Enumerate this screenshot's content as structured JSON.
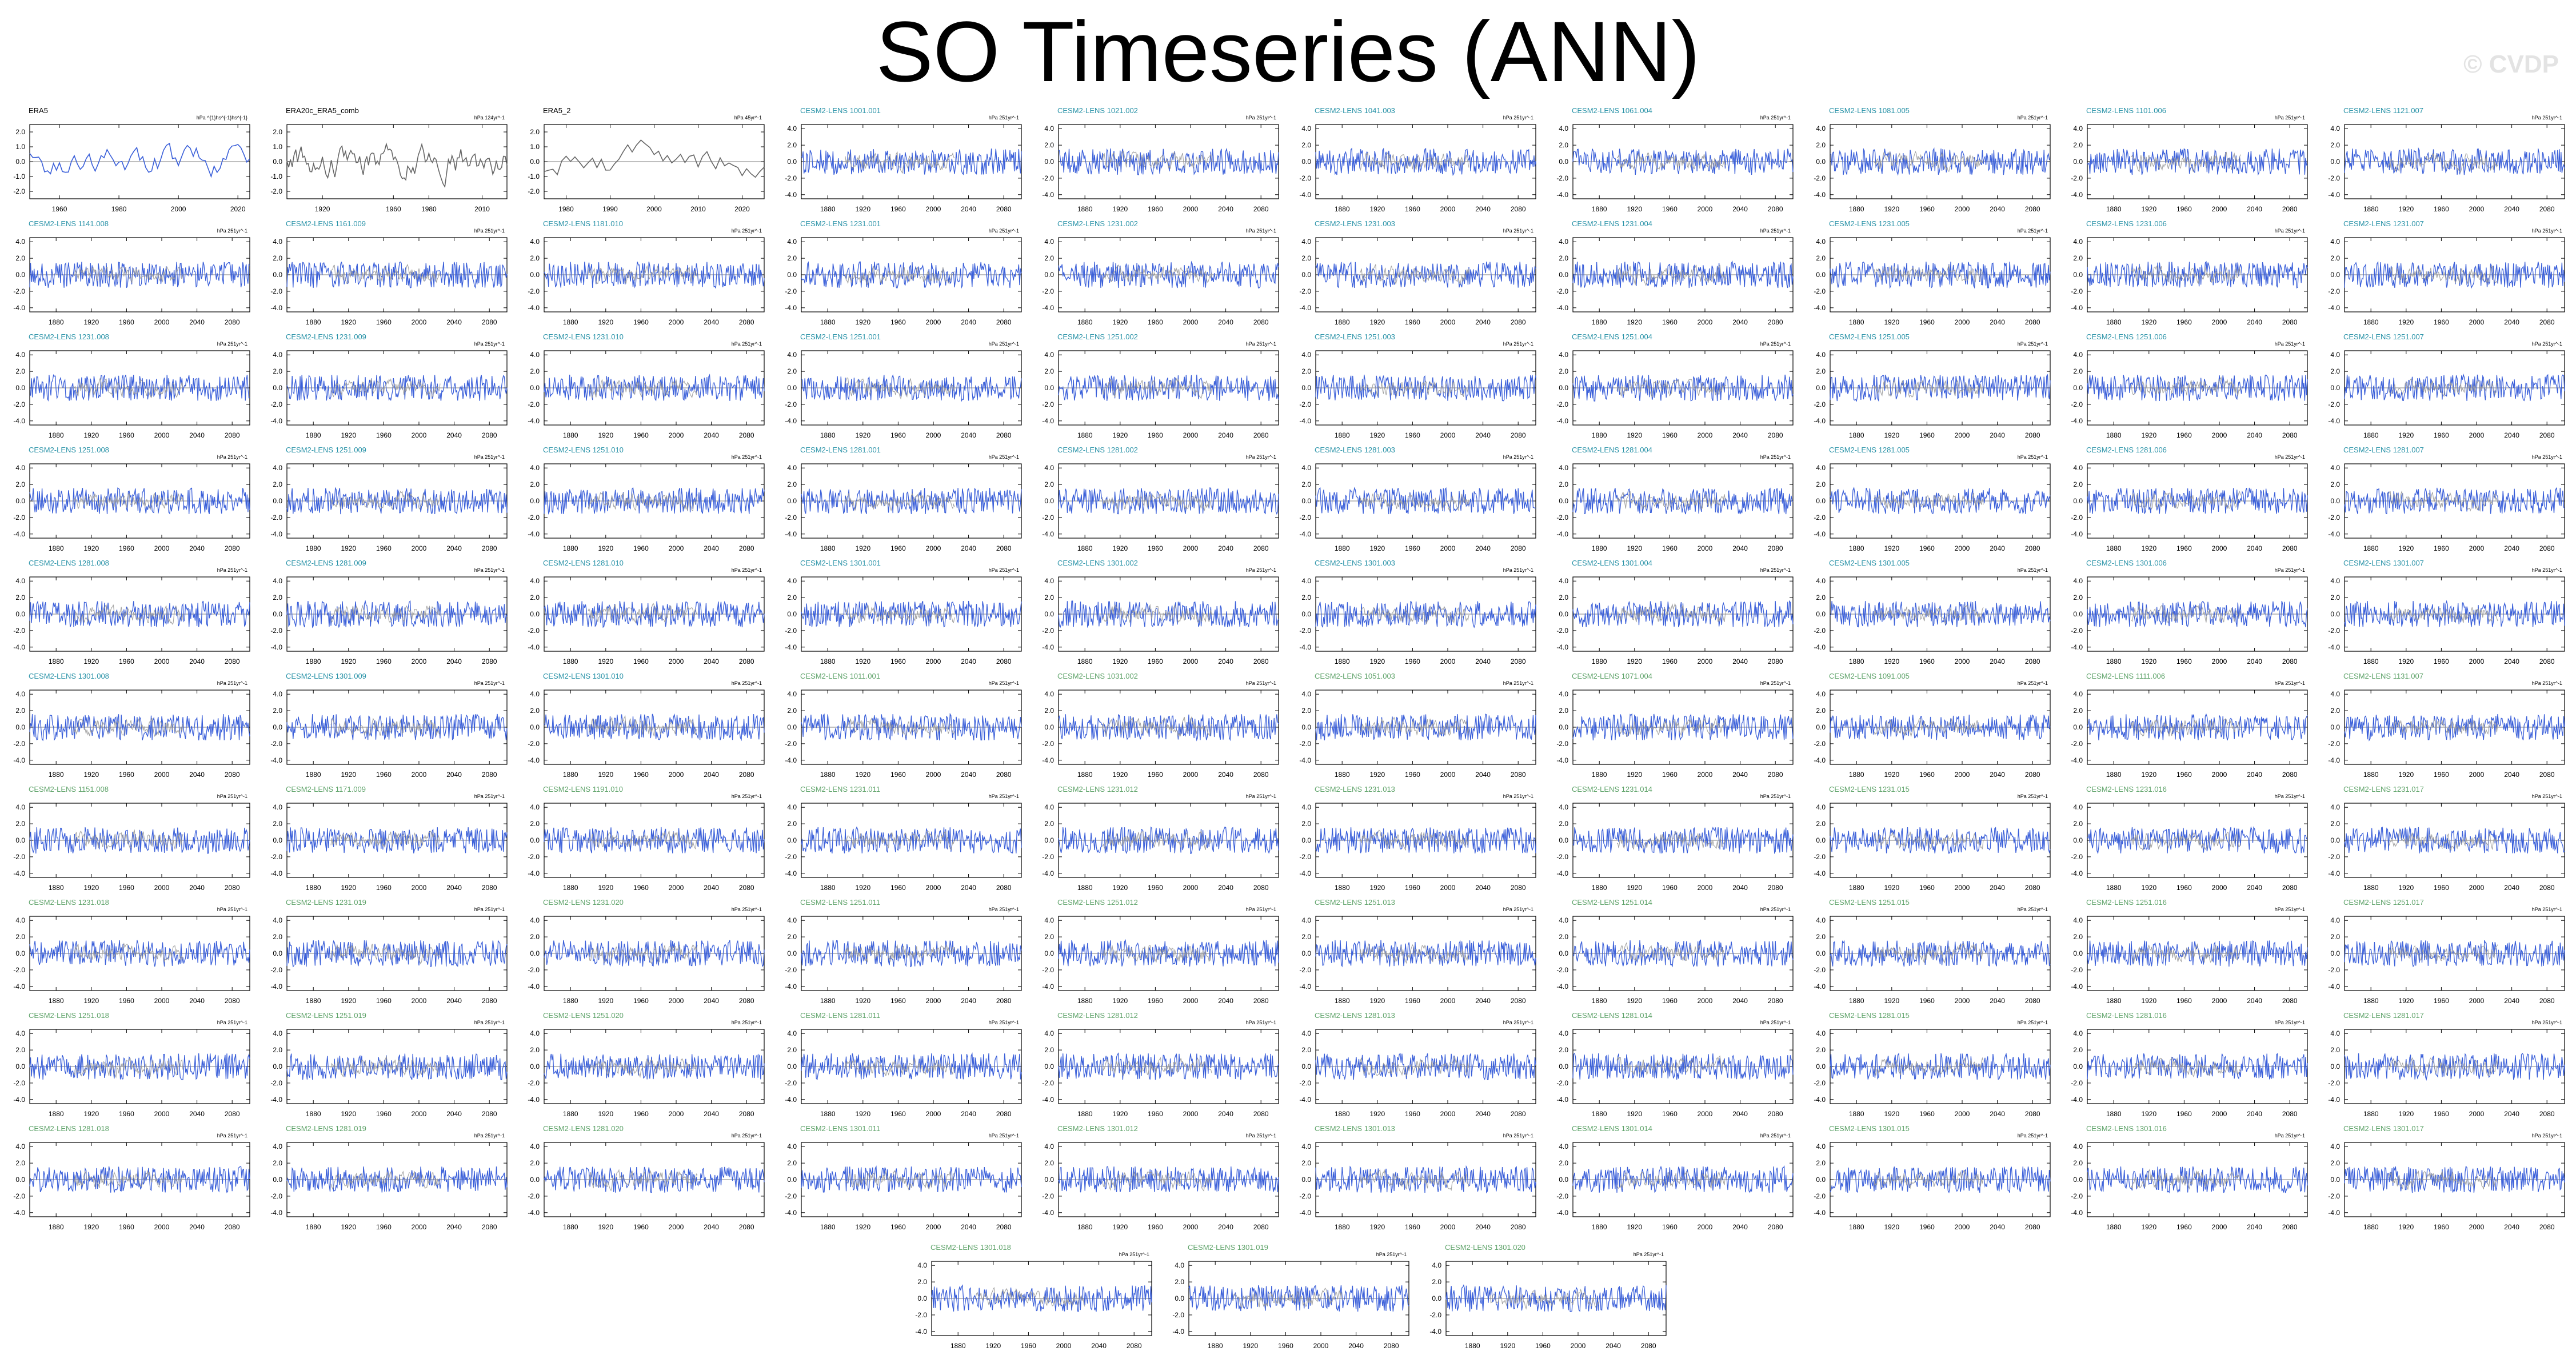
{
  "title": "SO Timeseries (ANN)",
  "watermark": "© CVDP",
  "colors": {
    "model_line": "#3a5fd9",
    "obs_line": "#666666",
    "ensemble_mean": "#9a9a9a",
    "obs_label": "#000000",
    "lens_label_a": "#2a93a8",
    "lens_label_b": "#5fa36a"
  },
  "chart_data": {
    "type": "line",
    "title": "SO Timeseries (ANN)",
    "panels": [
      {
        "name": "ERA5",
        "kind": "obs",
        "label_color": "obs_label",
        "units": "hPa ^{1}hs^{-1}hs^{-1}",
        "xlim": [
          1950,
          2024
        ],
        "xticks": [
          1960,
          1980,
          2000,
          2020
        ],
        "ylim": [
          -2.5,
          2.5
        ],
        "yticks": [
          2.0,
          1.0,
          0.0,
          -1.0,
          -2.0
        ]
      },
      {
        "name": "ERA20c_ERA5_comb",
        "kind": "obs",
        "label_color": "obs_label",
        "units": "hPa 124yr^-1",
        "xlim": [
          1900,
          2024
        ],
        "xticks": [
          1920,
          1960,
          1980,
          2010
        ],
        "ylim": [
          -2.5,
          2.5
        ],
        "yticks": [
          2.0,
          1.0,
          0.0,
          -1.0,
          -2.0
        ]
      },
      {
        "name": "ERA5_2",
        "kind": "obs",
        "label_color": "obs_label",
        "units": "hPa 45yr^-1",
        "xlim": [
          1975,
          2025
        ],
        "xticks": [
          1980,
          1990,
          2000,
          2010,
          2020
        ],
        "ylim": [
          -2.5,
          2.5
        ],
        "yticks": [
          2.0,
          1.0,
          0.0,
          -1.0,
          -2.0
        ]
      },
      {
        "name": "CESM2-LENS 1001.001",
        "label_color": "lens_label_a"
      },
      {
        "name": "CESM2-LENS 1021.002",
        "label_color": "lens_label_a"
      },
      {
        "name": "CESM2-LENS 1041.003",
        "label_color": "lens_label_a"
      },
      {
        "name": "CESM2-LENS 1061.004",
        "label_color": "lens_label_a"
      },
      {
        "name": "CESM2-LENS 1081.005",
        "label_color": "lens_label_a"
      },
      {
        "name": "CESM2-LENS 1101.006",
        "label_color": "lens_label_a"
      },
      {
        "name": "CESM2-LENS 1121.007",
        "label_color": "lens_label_a"
      },
      {
        "name": "CESM2-LENS 1141.008",
        "label_color": "lens_label_a"
      },
      {
        "name": "CESM2-LENS 1161.009",
        "label_color": "lens_label_a"
      },
      {
        "name": "CESM2-LENS 1181.010",
        "label_color": "lens_label_a"
      },
      {
        "name": "CESM2-LENS 1231.001",
        "label_color": "lens_label_a"
      },
      {
        "name": "CESM2-LENS 1231.002",
        "label_color": "lens_label_a"
      },
      {
        "name": "CESM2-LENS 1231.003",
        "label_color": "lens_label_a"
      },
      {
        "name": "CESM2-LENS 1231.004",
        "label_color": "lens_label_a"
      },
      {
        "name": "CESM2-LENS 1231.005",
        "label_color": "lens_label_a"
      },
      {
        "name": "CESM2-LENS 1231.006",
        "label_color": "lens_label_a"
      },
      {
        "name": "CESM2-LENS 1231.007",
        "label_color": "lens_label_a"
      },
      {
        "name": "CESM2-LENS 1231.008",
        "label_color": "lens_label_a"
      },
      {
        "name": "CESM2-LENS 1231.009",
        "label_color": "lens_label_a"
      },
      {
        "name": "CESM2-LENS 1231.010",
        "label_color": "lens_label_a"
      },
      {
        "name": "CESM2-LENS 1251.001",
        "label_color": "lens_label_a"
      },
      {
        "name": "CESM2-LENS 1251.002",
        "label_color": "lens_label_a"
      },
      {
        "name": "CESM2-LENS 1251.003",
        "label_color": "lens_label_a"
      },
      {
        "name": "CESM2-LENS 1251.004",
        "label_color": "lens_label_a"
      },
      {
        "name": "CESM2-LENS 1251.005",
        "label_color": "lens_label_a"
      },
      {
        "name": "CESM2-LENS 1251.006",
        "label_color": "lens_label_a"
      },
      {
        "name": "CESM2-LENS 1251.007",
        "label_color": "lens_label_a"
      },
      {
        "name": "CESM2-LENS 1251.008",
        "label_color": "lens_label_a"
      },
      {
        "name": "CESM2-LENS 1251.009",
        "label_color": "lens_label_a"
      },
      {
        "name": "CESM2-LENS 1251.010",
        "label_color": "lens_label_a"
      },
      {
        "name": "CESM2-LENS 1281.001",
        "label_color": "lens_label_a"
      },
      {
        "name": "CESM2-LENS 1281.002",
        "label_color": "lens_label_a"
      },
      {
        "name": "CESM2-LENS 1281.003",
        "label_color": "lens_label_a"
      },
      {
        "name": "CESM2-LENS 1281.004",
        "label_color": "lens_label_a"
      },
      {
        "name": "CESM2-LENS 1281.005",
        "label_color": "lens_label_a"
      },
      {
        "name": "CESM2-LENS 1281.006",
        "label_color": "lens_label_a"
      },
      {
        "name": "CESM2-LENS 1281.007",
        "label_color": "lens_label_a"
      },
      {
        "name": "CESM2-LENS 1281.008",
        "label_color": "lens_label_a"
      },
      {
        "name": "CESM2-LENS 1281.009",
        "label_color": "lens_label_a"
      },
      {
        "name": "CESM2-LENS 1281.010",
        "label_color": "lens_label_a"
      },
      {
        "name": "CESM2-LENS 1301.001",
        "label_color": "lens_label_a"
      },
      {
        "name": "CESM2-LENS 1301.002",
        "label_color": "lens_label_a"
      },
      {
        "name": "CESM2-LENS 1301.003",
        "label_color": "lens_label_a"
      },
      {
        "name": "CESM2-LENS 1301.004",
        "label_color": "lens_label_a"
      },
      {
        "name": "CESM2-LENS 1301.005",
        "label_color": "lens_label_a"
      },
      {
        "name": "CESM2-LENS 1301.006",
        "label_color": "lens_label_a"
      },
      {
        "name": "CESM2-LENS 1301.007",
        "label_color": "lens_label_a"
      },
      {
        "name": "CESM2-LENS 1301.008",
        "label_color": "lens_label_a"
      },
      {
        "name": "CESM2-LENS 1301.009",
        "label_color": "lens_label_a"
      },
      {
        "name": "CESM2-LENS 1301.010",
        "label_color": "lens_label_a"
      },
      {
        "name": "CESM2-LENS 1011.001",
        "label_color": "lens_label_b"
      },
      {
        "name": "CESM2-LENS 1031.002",
        "label_color": "lens_label_b"
      },
      {
        "name": "CESM2-LENS 1051.003",
        "label_color": "lens_label_b"
      },
      {
        "name": "CESM2-LENS 1071.004",
        "label_color": "lens_label_b"
      },
      {
        "name": "CESM2-LENS 1091.005",
        "label_color": "lens_label_b"
      },
      {
        "name": "CESM2-LENS 1111.006",
        "label_color": "lens_label_b"
      },
      {
        "name": "CESM2-LENS 1131.007",
        "label_color": "lens_label_b"
      },
      {
        "name": "CESM2-LENS 1151.008",
        "label_color": "lens_label_b"
      },
      {
        "name": "CESM2-LENS 1171.009",
        "label_color": "lens_label_b"
      },
      {
        "name": "CESM2-LENS 1191.010",
        "label_color": "lens_label_b"
      },
      {
        "name": "CESM2-LENS 1231.011",
        "label_color": "lens_label_b"
      },
      {
        "name": "CESM2-LENS 1231.012",
        "label_color": "lens_label_b"
      },
      {
        "name": "CESM2-LENS 1231.013",
        "label_color": "lens_label_b"
      },
      {
        "name": "CESM2-LENS 1231.014",
        "label_color": "lens_label_b"
      },
      {
        "name": "CESM2-LENS 1231.015",
        "label_color": "lens_label_b"
      },
      {
        "name": "CESM2-LENS 1231.016",
        "label_color": "lens_label_b"
      },
      {
        "name": "CESM2-LENS 1231.017",
        "label_color": "lens_label_b"
      },
      {
        "name": "CESM2-LENS 1231.018",
        "label_color": "lens_label_b"
      },
      {
        "name": "CESM2-LENS 1231.019",
        "label_color": "lens_label_b"
      },
      {
        "name": "CESM2-LENS 1231.020",
        "label_color": "lens_label_b"
      },
      {
        "name": "CESM2-LENS 1251.011",
        "label_color": "lens_label_b"
      },
      {
        "name": "CESM2-LENS 1251.012",
        "label_color": "lens_label_b"
      },
      {
        "name": "CESM2-LENS 1251.013",
        "label_color": "lens_label_b"
      },
      {
        "name": "CESM2-LENS 1251.014",
        "label_color": "lens_label_b"
      },
      {
        "name": "CESM2-LENS 1251.015",
        "label_color": "lens_label_b"
      },
      {
        "name": "CESM2-LENS 1251.016",
        "label_color": "lens_label_b"
      },
      {
        "name": "CESM2-LENS 1251.017",
        "label_color": "lens_label_b"
      },
      {
        "name": "CESM2-LENS 1251.018",
        "label_color": "lens_label_b"
      },
      {
        "name": "CESM2-LENS 1251.019",
        "label_color": "lens_label_b"
      },
      {
        "name": "CESM2-LENS 1251.020",
        "label_color": "lens_label_b"
      },
      {
        "name": "CESM2-LENS 1281.011",
        "label_color": "lens_label_b"
      },
      {
        "name": "CESM2-LENS 1281.012",
        "label_color": "lens_label_b"
      },
      {
        "name": "CESM2-LENS 1281.013",
        "label_color": "lens_label_b"
      },
      {
        "name": "CESM2-LENS 1281.014",
        "label_color": "lens_label_b"
      },
      {
        "name": "CESM2-LENS 1281.015",
        "label_color": "lens_label_b"
      },
      {
        "name": "CESM2-LENS 1281.016",
        "label_color": "lens_label_b"
      },
      {
        "name": "CESM2-LENS 1281.017",
        "label_color": "lens_label_b"
      },
      {
        "name": "CESM2-LENS 1281.018",
        "label_color": "lens_label_b"
      },
      {
        "name": "CESM2-LENS 1281.019",
        "label_color": "lens_label_b"
      },
      {
        "name": "CESM2-LENS 1281.020",
        "label_color": "lens_label_b"
      },
      {
        "name": "CESM2-LENS 1301.011",
        "label_color": "lens_label_b"
      },
      {
        "name": "CESM2-LENS 1301.012",
        "label_color": "lens_label_b"
      },
      {
        "name": "CESM2-LENS 1301.013",
        "label_color": "lens_label_b"
      },
      {
        "name": "CESM2-LENS 1301.014",
        "label_color": "lens_label_b"
      },
      {
        "name": "CESM2-LENS 1301.015",
        "label_color": "lens_label_b"
      },
      {
        "name": "CESM2-LENS 1301.016",
        "label_color": "lens_label_b"
      },
      {
        "name": "CESM2-LENS 1301.017",
        "label_color": "lens_label_b"
      },
      {
        "name": "CESM2-LENS 1301.018",
        "label_color": "lens_label_b"
      },
      {
        "name": "CESM2-LENS 1301.019",
        "label_color": "lens_label_b"
      },
      {
        "name": "CESM2-LENS 1301.020",
        "label_color": "lens_label_b"
      }
    ],
    "model_defaults": {
      "units": "hPa 251yr^-1",
      "xlim": [
        1850,
        2100
      ],
      "xticks": [
        1880,
        1920,
        1960,
        2000,
        2040,
        2080
      ],
      "ylim": [
        -4.5,
        4.5
      ],
      "yticks": [
        4.0,
        2.0,
        0.0,
        -2.0,
        -4.0
      ]
    }
  }
}
